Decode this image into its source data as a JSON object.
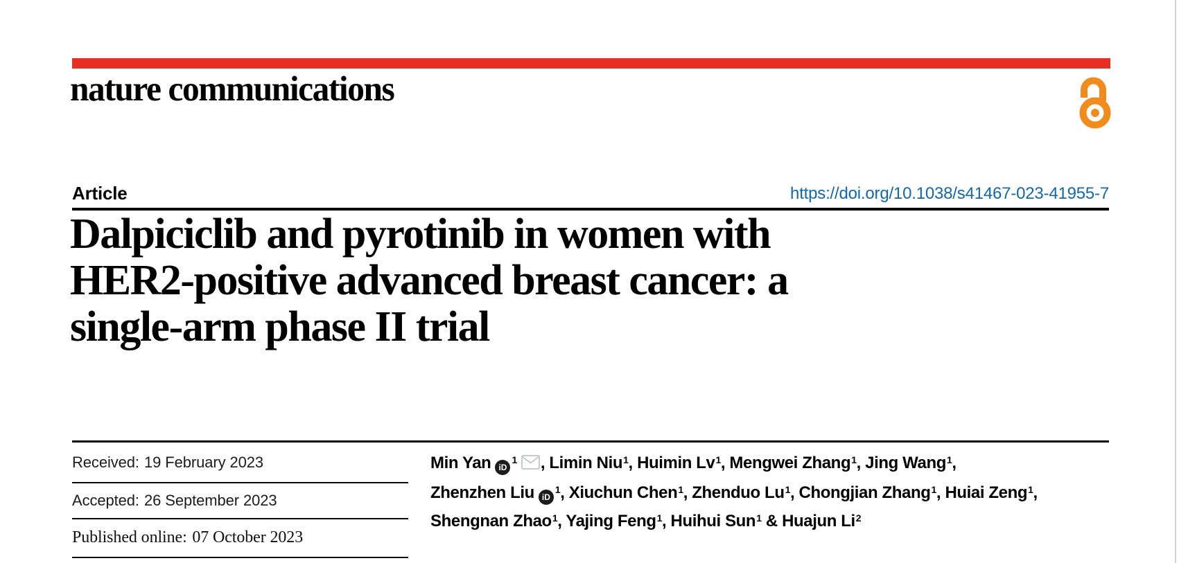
{
  "theme": {
    "brand_red": "#e63023",
    "open_access_orange": "#f08c1e",
    "doi_blue": "#1268ab"
  },
  "brand": {
    "journal_logo": "nature communications",
    "open_access_icon": "open-padlock"
  },
  "header": {
    "article_label": "Article",
    "doi": "https://doi.org/10.1038/s41467-023-41955-7"
  },
  "title": {
    "lines": [
      "Dalpiciclib and pyrotinib in women with",
      "HER2-positive advanced breast cancer: a",
      "single-arm phase II trial"
    ]
  },
  "dates": {
    "rows": [
      {
        "label": "Received:",
        "value": "19 February 2023"
      },
      {
        "label": "Accepted:",
        "value": "26 September 2023"
      },
      {
        "label": "Published online:",
        "value": "07 October 2023"
      }
    ]
  },
  "icons": {
    "orcid_glyph": "iD"
  },
  "authors": {
    "lines": [
      {
        "segments": [
          {
            "name": "Min Yan",
            "orcid": true,
            "sup": "1",
            "email": true,
            "sep": ", "
          },
          {
            "name": "Limin Niu",
            "sup": "1",
            "sep": ", "
          },
          {
            "name": "Huimin Lv",
            "sup": "1",
            "sep": ", "
          },
          {
            "name": "Mengwei Zhang",
            "sup": "1",
            "sep": ", "
          },
          {
            "name": "Jing Wang",
            "sup": "1",
            "sep": ","
          }
        ]
      },
      {
        "segments": [
          {
            "name": "Zhenzhen Liu",
            "orcid": true,
            "sup": "1",
            "sep": ", "
          },
          {
            "name": "Xiuchun Chen",
            "sup": "1",
            "sep": ", "
          },
          {
            "name": "Zhenduo Lu",
            "sup": "1",
            "sep": ", "
          },
          {
            "name": "Chongjian Zhang",
            "sup": "1",
            "sep": ", "
          },
          {
            "name": "Huiai Zeng",
            "sup": "1",
            "sep": ","
          }
        ]
      },
      {
        "segments": [
          {
            "name": "Shengnan Zhao",
            "sup": "1",
            "sep": ", "
          },
          {
            "name": "Yajing Feng",
            "sup": "1",
            "sep": ", "
          },
          {
            "name": "Huihui Sun",
            "sup": "1",
            "sep": " & "
          },
          {
            "name": "Huajun Li",
            "sup": "2",
            "sep": ""
          }
        ]
      }
    ]
  }
}
